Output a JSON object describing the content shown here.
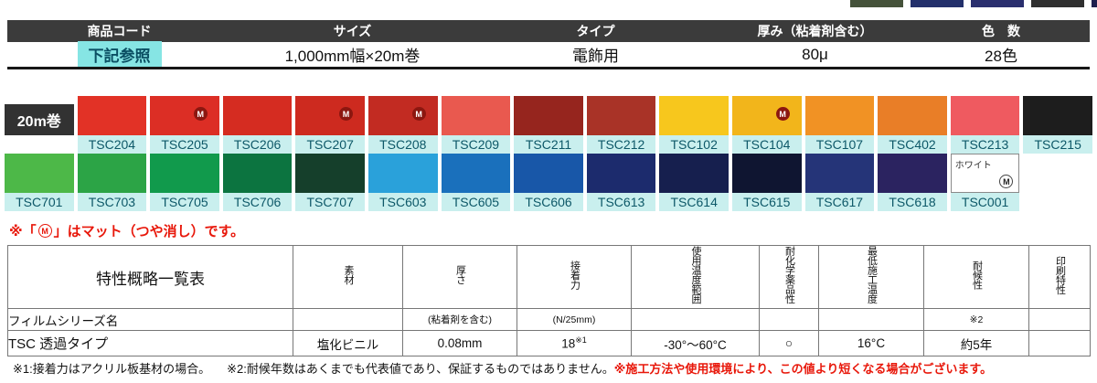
{
  "top_strip": {
    "partial_swatches": [
      "#45523a",
      "#23306b",
      "#2a2f6e",
      "#303030",
      "#1f1f4e"
    ]
  },
  "spec_header": {
    "bar_color": "#3b3b3b",
    "highlight_color": "#86e5e4",
    "columns": [
      {
        "label": "商品コード",
        "value": "下記参照",
        "highlight": true
      },
      {
        "label": "サイズ",
        "value": "1,000mm幅×20m巻",
        "highlight": false
      },
      {
        "label": "タイプ",
        "value": "電飾用",
        "highlight": false
      },
      {
        "label": "厚み（粘着剤含む）",
        "value": "80μ",
        "highlight": false
      },
      {
        "label": "色　数",
        "value": "28色",
        "highlight": false
      }
    ]
  },
  "swatches": {
    "roll_label": "20m巻",
    "label_bg": "#c9efee",
    "label_color": "#0d5868",
    "row1": [
      {
        "code": "TSC204",
        "color": "#e23226"
      },
      {
        "code": "TSC205",
        "color": "#dc2e25",
        "matte": true
      },
      {
        "code": "TSC206",
        "color": "#d52c21"
      },
      {
        "code": "TSC207",
        "color": "#cd2a1f",
        "matte": true
      },
      {
        "code": "TSC208",
        "color": "#c22b22",
        "matte": true
      },
      {
        "code": "TSC209",
        "color": "#e9594f"
      },
      {
        "code": "TSC211",
        "color": "#96251e"
      },
      {
        "code": "TSC212",
        "color": "#a93327"
      },
      {
        "code": "TSC102",
        "color": "#f7c71d"
      },
      {
        "code": "TSC104",
        "color": "#f2b51b",
        "matte": true
      },
      {
        "code": "TSC107",
        "color": "#f19224"
      },
      {
        "code": "TSC402",
        "color": "#e97e27"
      },
      {
        "code": "TSC213",
        "color": "#ef5a60"
      },
      {
        "code": "TSC215",
        "color": "#1d1d1d"
      }
    ],
    "row2": [
      {
        "code": "TSC701",
        "color": "#4db848"
      },
      {
        "code": "TSC703",
        "color": "#2ca446"
      },
      {
        "code": "TSC705",
        "color": "#119a4c"
      },
      {
        "code": "TSC706",
        "color": "#0c7440"
      },
      {
        "code": "TSC707",
        "color": "#153f2b"
      },
      {
        "code": "TSC603",
        "color": "#2aa1da"
      },
      {
        "code": "TSC605",
        "color": "#1a70bc"
      },
      {
        "code": "TSC606",
        "color": "#1857a8"
      },
      {
        "code": "TSC613",
        "color": "#1c2b6d"
      },
      {
        "code": "TSC614",
        "color": "#161f4e"
      },
      {
        "code": "TSC615",
        "color": "#0f1531"
      },
      {
        "code": "TSC617",
        "color": "#253478"
      },
      {
        "code": "TSC618",
        "color": "#2b2360"
      },
      {
        "code": "TSC001",
        "color": "#ffffff",
        "white": true,
        "label": "ホワイト",
        "matte": true
      }
    ]
  },
  "matte_note": {
    "prefix": "※「",
    "badge": "M",
    "suffix": "」はマット（つや消し）です。",
    "color": "#e8170a"
  },
  "spec_table": {
    "title": "特性概略一覧表",
    "series_label": "フィルムシリーズ名",
    "row_name": "TSC 透過タイプ",
    "columns": [
      {
        "header": "素材",
        "sub": "",
        "value": "塩化ビニル"
      },
      {
        "header": "厚さ",
        "sub": "(粘着剤を含む)",
        "value": "0.08mm"
      },
      {
        "header": "接着力",
        "sub": "(N/25mm)",
        "value": "18",
        "sup": "※1"
      },
      {
        "header": "使用温度範囲",
        "sub": "",
        "value": "-30°〜60°C"
      },
      {
        "header": "耐化学薬品性",
        "sub": "",
        "value": "○"
      },
      {
        "header": "最低施工温度",
        "sub": "",
        "value": "16°C"
      },
      {
        "header": "耐候性",
        "sub": "※2",
        "value": "約5年"
      },
      {
        "header": "印刷特性",
        "sub": "",
        "value": ""
      }
    ]
  },
  "footnotes": {
    "note1": "※1:接着力はアクリル板基材の場合。",
    "note2": "※2:耐候年数はあくまでも代表値であり、保証するものではありません。",
    "note_red": "※施工方法や使用環境により、この値より短くなる場合がございます。"
  }
}
